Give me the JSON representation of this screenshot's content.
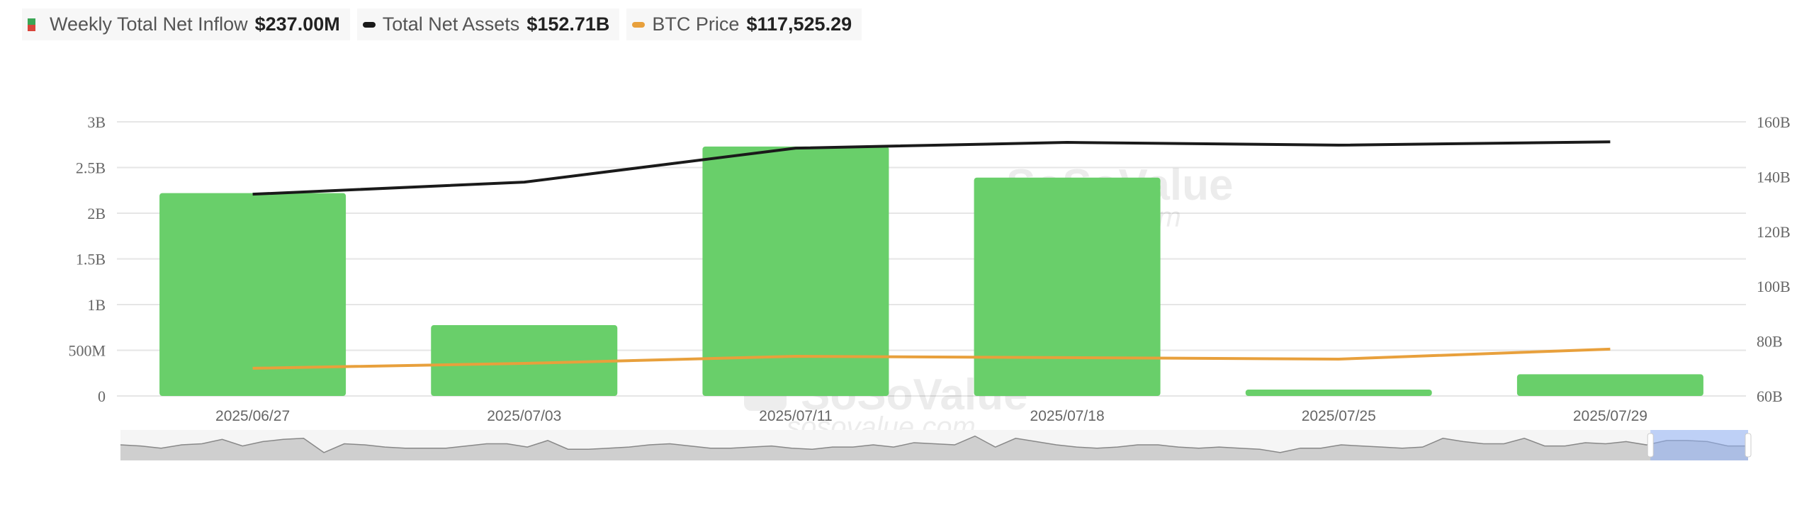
{
  "legend": [
    {
      "label": "Weekly Total Net Inflow",
      "value": "$237.00M",
      "icon": "bar-swatch-icon"
    },
    {
      "label": "Total Net Assets",
      "value": "$152.71B",
      "color": "#1a1a1a",
      "icon": "line-swatch-icon"
    },
    {
      "label": "BTC Price",
      "value": "$117,525.29",
      "color": "#e8a03c",
      "icon": "line-swatch-icon"
    }
  ],
  "watermark": {
    "brand": "SoSoValue",
    "site": "sosovalue.com"
  },
  "chart_data": {
    "type": "bar",
    "categories": [
      "2025/06/27",
      "2025/07/03",
      "2025/07/11",
      "2025/07/18",
      "2025/07/25",
      "2025/07/29"
    ],
    "series": [
      {
        "name": "Weekly Total Net Inflow",
        "type": "bar",
        "axis": "left",
        "color": "#69cf6a",
        "unit": "B",
        "values": [
          2.22,
          0.775,
          2.73,
          2.39,
          0.07,
          0.237
        ]
      },
      {
        "name": "Total Net Assets",
        "type": "line",
        "axis": "right",
        "color": "#1a1a1a",
        "unit": "B",
        "values": [
          133.6,
          138.0,
          150.4,
          152.5,
          151.5,
          152.71
        ]
      },
      {
        "name": "BTC Price",
        "type": "line",
        "axis": "hidden",
        "color": "#e8a03c",
        "unit": "USD",
        "values": [
          107300,
          109900,
          113700,
          113000,
          112200,
          117525.29
        ]
      }
    ],
    "y_left": {
      "range": [
        0,
        3
      ],
      "ticks": [
        {
          "v": 0,
          "label": "0"
        },
        {
          "v": 0.5,
          "label": "500M"
        },
        {
          "v": 1,
          "label": "1B"
        },
        {
          "v": 1.5,
          "label": "1.5B"
        },
        {
          "v": 2,
          "label": "2B"
        },
        {
          "v": 2.5,
          "label": "2.5B"
        },
        {
          "v": 3,
          "label": "3B"
        }
      ]
    },
    "y_right": {
      "range": [
        60,
        160
      ],
      "ticks": [
        {
          "v": 60,
          "label": "60B"
        },
        {
          "v": 80,
          "label": "80B"
        },
        {
          "v": 100,
          "label": "100B"
        },
        {
          "v": 120,
          "label": "120B"
        },
        {
          "v": 140,
          "label": "140B"
        },
        {
          "v": 160,
          "label": "160B"
        }
      ]
    },
    "y_btc_range": [
      92500,
      239000
    ],
    "grid": true,
    "legend_position": "top-left",
    "navigator": {
      "selected_fraction": [
        0.94,
        1.0
      ],
      "values": [
        0.45,
        0.4,
        0.3,
        0.45,
        0.5,
        0.7,
        0.4,
        0.6,
        0.7,
        0.75,
        0.1,
        0.5,
        0.45,
        0.35,
        0.3,
        0.3,
        0.3,
        0.4,
        0.5,
        0.5,
        0.35,
        0.65,
        0.25,
        0.25,
        0.3,
        0.35,
        0.45,
        0.5,
        0.4,
        0.3,
        0.3,
        0.35,
        0.4,
        0.3,
        0.25,
        0.35,
        0.35,
        0.45,
        0.35,
        0.55,
        0.5,
        0.45,
        0.85,
        0.35,
        0.75,
        0.6,
        0.45,
        0.35,
        0.3,
        0.35,
        0.45,
        0.45,
        0.35,
        0.3,
        0.35,
        0.3,
        0.25,
        0.1,
        0.3,
        0.3,
        0.45,
        0.4,
        0.35,
        0.3,
        0.35,
        0.75,
        0.6,
        0.5,
        0.5,
        0.75,
        0.4,
        0.4,
        0.55,
        0.5,
        0.6,
        0.45,
        0.65,
        0.65,
        0.6,
        0.4,
        0.4
      ]
    }
  }
}
